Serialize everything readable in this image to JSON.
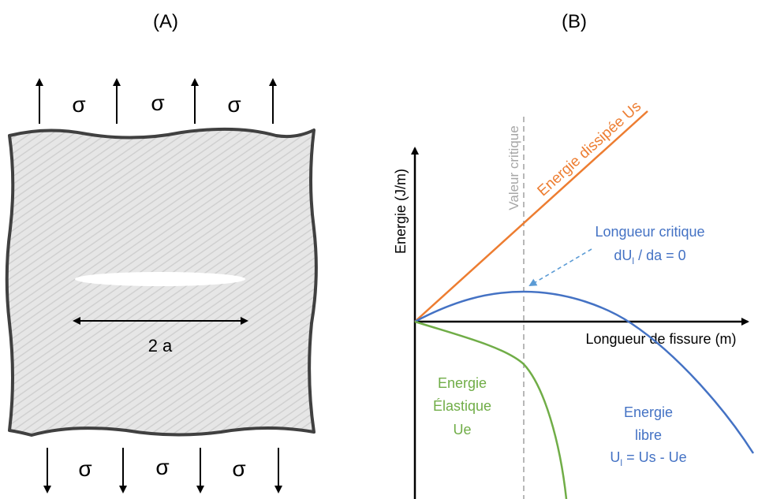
{
  "panel_a": {
    "label": "(A)",
    "stress_symbol": "σ",
    "crack_label": "2 a"
  },
  "panel_b": {
    "label": "(B)",
    "y_axis_label": "Energie (J/m)",
    "x_axis_label": "Longueur de fissure (m)",
    "critical_value_label": "Valeur critique",
    "dissipated_label": "Energie dissipée Us",
    "critical_length_line1": "Longueur critique",
    "critical_length_line2_main": "dU",
    "critical_length_line2_sub": "l",
    "critical_length_line2_rest": " / da = 0",
    "elastic_line1": "Energie",
    "elastic_line2": "Élastique",
    "elastic_line3": "Ue",
    "free_line1": "Energie",
    "free_line2": "libre",
    "free_line3_main": "U",
    "free_line3_sub": "l",
    "free_line3_rest": " = Us - Ue"
  },
  "colors": {
    "dissipated": "#ED7D31",
    "free": "#4472C4",
    "elastic": "#70AD47",
    "critical": "#A6A6A6",
    "axis": "#000000",
    "plate_fill": "#E3E3E3",
    "plate_border": "#404040"
  }
}
